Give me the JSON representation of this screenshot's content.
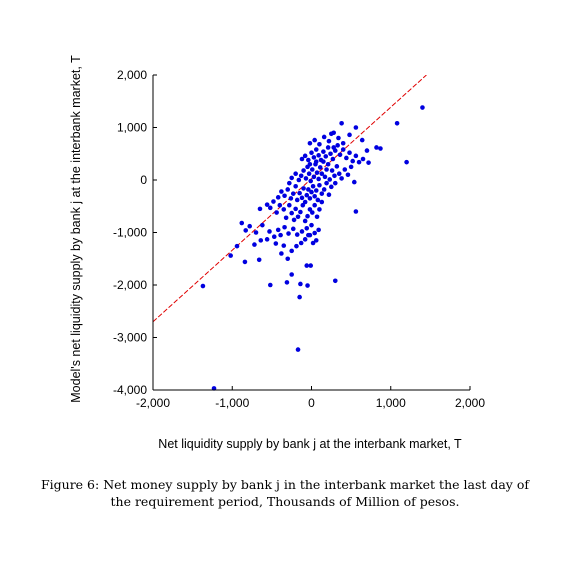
{
  "chart_data": {
    "type": "scatter",
    "xlabel": "Net liquidity supply by bank j at the interbank market, T",
    "ylabel": "Model's net liquidity supply by bank j at the interbank market, T",
    "xlim": [
      -2000,
      2000
    ],
    "ylim": [
      -4000,
      2000
    ],
    "xticks": [
      "-2,000",
      "-1,000",
      "0",
      "1,000",
      "2,000"
    ],
    "yticks": [
      "2,000",
      "1,000",
      "0",
      "-1,000",
      "-2,000",
      "-3,000",
      "-4,000"
    ],
    "xtick_values": [
      -2000,
      -1000,
      0,
      1000,
      2000
    ],
    "ytick_values": [
      2000,
      1000,
      0,
      -1000,
      -2000,
      -3000,
      -4000
    ],
    "grid": false,
    "point_color": "#0000e0",
    "line_color": "#e00000",
    "fit_line": {
      "x": [
        -2000,
        1450
      ],
      "y": [
        -2700,
        2000
      ]
    },
    "points": [
      [
        -1230,
        -3970
      ],
      [
        -1370,
        -2020
      ],
      [
        -840,
        -1560
      ],
      [
        -660,
        -1520
      ],
      [
        -520,
        -2000
      ],
      [
        -310,
        -1950
      ],
      [
        -250,
        -1800
      ],
      [
        -150,
        -2230
      ],
      [
        -140,
        -1980
      ],
      [
        -50,
        -2010
      ],
      [
        -10,
        -1630
      ],
      [
        -60,
        -1630
      ],
      [
        -170,
        -3230
      ],
      [
        300,
        -1920
      ],
      [
        -1020,
        -1440
      ],
      [
        -940,
        -1260
      ],
      [
        -720,
        -1230
      ],
      [
        -640,
        -1150
      ],
      [
        -560,
        -1130
      ],
      [
        -450,
        -1210
      ],
      [
        -380,
        -1400
      ],
      [
        -300,
        -1500
      ],
      [
        -250,
        -1350
      ],
      [
        -190,
        -1260
      ],
      [
        -130,
        -1200
      ],
      [
        -80,
        -1130
      ],
      [
        -20,
        -1050
      ],
      [
        20,
        -1200
      ],
      [
        60,
        -1150
      ],
      [
        -350,
        -1250
      ],
      [
        -880,
        -820
      ],
      [
        -830,
        -960
      ],
      [
        -780,
        -880
      ],
      [
        -700,
        -1000
      ],
      [
        -620,
        -860
      ],
      [
        -530,
        -980
      ],
      [
        -470,
        -1080
      ],
      [
        -420,
        -950
      ],
      [
        -390,
        -1050
      ],
      [
        -340,
        -900
      ],
      [
        -290,
        -1020
      ],
      [
        -230,
        -930
      ],
      [
        -180,
        -1040
      ],
      [
        -120,
        -980
      ],
      [
        -60,
        -920
      ],
      [
        0,
        -860
      ],
      [
        -40,
        -1050
      ],
      [
        40,
        -1010
      ],
      [
        90,
        -950
      ],
      [
        -560,
        -470
      ],
      [
        -520,
        -530
      ],
      [
        -480,
        -410
      ],
      [
        -440,
        -620
      ],
      [
        -400,
        -480
      ],
      [
        -350,
        -560
      ],
      [
        -320,
        -720
      ],
      [
        -280,
        -480
      ],
      [
        -250,
        -630
      ],
      [
        -220,
        -760
      ],
      [
        -200,
        -550
      ],
      [
        -170,
        -700
      ],
      [
        -140,
        -610
      ],
      [
        -110,
        -480
      ],
      [
        -80,
        -780
      ],
      [
        -50,
        -690
      ],
      [
        -20,
        -560
      ],
      [
        10,
        -620
      ],
      [
        40,
        -480
      ],
      [
        70,
        -700
      ],
      [
        100,
        -560
      ],
      [
        130,
        -420
      ],
      [
        560,
        -600
      ],
      [
        -650,
        -550
      ],
      [
        -380,
        -220
      ],
      [
        -340,
        -300
      ],
      [
        -300,
        -180
      ],
      [
        -260,
        -350
      ],
      [
        -230,
        -260
      ],
      [
        -200,
        -120
      ],
      [
        -180,
        -380
      ],
      [
        -150,
        -250
      ],
      [
        -120,
        -340
      ],
      [
        -100,
        -160
      ],
      [
        -80,
        -420
      ],
      [
        -60,
        -290
      ],
      [
        -40,
        -180
      ],
      [
        -20,
        -350
      ],
      [
        0,
        -230
      ],
      [
        20,
        -120
      ],
      [
        40,
        -310
      ],
      [
        60,
        -200
      ],
      [
        80,
        -380
      ],
      [
        100,
        -100
      ],
      [
        130,
        -260
      ],
      [
        160,
        -180
      ],
      [
        190,
        -60
      ],
      [
        220,
        -280
      ],
      [
        250,
        -130
      ],
      [
        300,
        -60
      ],
      [
        -280,
        -60
      ],
      [
        -420,
        -330
      ],
      [
        -250,
        40
      ],
      [
        -200,
        120
      ],
      [
        -160,
        0
      ],
      [
        -130,
        80
      ],
      [
        -100,
        180
      ],
      [
        -70,
        30
      ],
      [
        -50,
        250
      ],
      [
        -30,
        120
      ],
      [
        -10,
        -20
      ],
      [
        10,
        200
      ],
      [
        30,
        60
      ],
      [
        50,
        300
      ],
      [
        70,
        140
      ],
      [
        90,
        20
      ],
      [
        110,
        240
      ],
      [
        130,
        120
      ],
      [
        150,
        350
      ],
      [
        170,
        60
      ],
      [
        190,
        200
      ],
      [
        210,
        300
      ],
      [
        230,
        10
      ],
      [
        260,
        180
      ],
      [
        290,
        80
      ],
      [
        320,
        260
      ],
      [
        350,
        120
      ],
      [
        380,
        30
      ],
      [
        420,
        200
      ],
      [
        460,
        100
      ],
      [
        500,
        250
      ],
      [
        540,
        -40
      ],
      [
        -120,
        400
      ],
      [
        -80,
        460
      ],
      [
        -40,
        380
      ],
      [
        0,
        520
      ],
      [
        30,
        430
      ],
      [
        60,
        580
      ],
      [
        90,
        470
      ],
      [
        120,
        380
      ],
      [
        150,
        540
      ],
      [
        180,
        450
      ],
      [
        210,
        620
      ],
      [
        240,
        500
      ],
      [
        270,
        400
      ],
      [
        300,
        560
      ],
      [
        330,
        660
      ],
      [
        360,
        480
      ],
      [
        400,
        580
      ],
      [
        440,
        420
      ],
      [
        480,
        520
      ],
      [
        520,
        360
      ],
      [
        560,
        460
      ],
      [
        600,
        340
      ],
      [
        650,
        400
      ],
      [
        720,
        330
      ],
      [
        60,
        350
      ],
      [
        -20,
        300
      ],
      [
        -20,
        700
      ],
      [
        40,
        760
      ],
      [
        100,
        680
      ],
      [
        160,
        820
      ],
      [
        220,
        740
      ],
      [
        280,
        900
      ],
      [
        340,
        800
      ],
      [
        400,
        700
      ],
      [
        480,
        860
      ],
      [
        560,
        1000
      ],
      [
        640,
        760
      ],
      [
        700,
        560
      ],
      [
        820,
        620
      ],
      [
        870,
        600
      ],
      [
        1080,
        1080
      ],
      [
        1200,
        340
      ],
      [
        1400,
        1380
      ],
      [
        380,
        1080
      ],
      [
        280,
        620
      ],
      [
        250,
        880
      ]
    ]
  },
  "caption": {
    "label": "Figure 6:",
    "text": "Net money supply by bank j in the interbank market the last day of the requirement period, Thousands of Million of pesos."
  }
}
